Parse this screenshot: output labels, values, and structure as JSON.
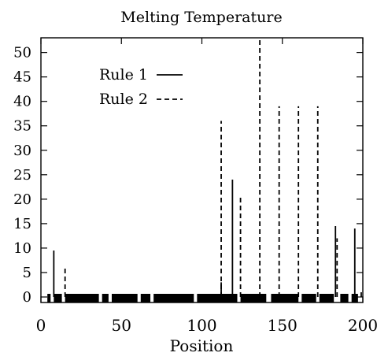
{
  "chart_data": {
    "type": "bar",
    "title": "Melting Temperature",
    "xlabel": "Position",
    "ylabel": "",
    "xlim": [
      0,
      200
    ],
    "ylim": [
      0,
      53
    ],
    "xticks": [
      0,
      50,
      100,
      150,
      200
    ],
    "yticks": [
      0,
      5,
      10,
      15,
      20,
      25,
      30,
      35,
      40,
      45,
      50
    ],
    "legend_position": "top-left",
    "grid": false,
    "series": [
      {
        "name": "Rule 1",
        "style": "solid",
        "x": [
          8,
          112,
          119,
          183,
          195
        ],
        "values": [
          9.5,
          3,
          24,
          14.5,
          14
        ]
      },
      {
        "name": "Rule 2",
        "style": "dashed",
        "x": [
          15,
          112,
          124,
          136,
          148,
          160,
          172,
          184,
          199
        ],
        "values": [
          6,
          36,
          20.5,
          53,
          39,
          39,
          39,
          12,
          1
        ]
      }
    ],
    "baseline_marks": [
      {
        "from": 4,
        "to": 6
      },
      {
        "from": 8,
        "to": 13
      },
      {
        "from": 15,
        "to": 36
      },
      {
        "from": 38,
        "to": 42
      },
      {
        "from": 44,
        "to": 60
      },
      {
        "from": 62,
        "to": 68
      },
      {
        "from": 70,
        "to": 95
      },
      {
        "from": 97,
        "to": 122
      },
      {
        "from": 124,
        "to": 140
      },
      {
        "from": 143,
        "to": 160
      },
      {
        "from": 162,
        "to": 171
      },
      {
        "from": 173,
        "to": 182
      },
      {
        "from": 186,
        "to": 191
      },
      {
        "from": 193,
        "to": 197
      }
    ]
  }
}
